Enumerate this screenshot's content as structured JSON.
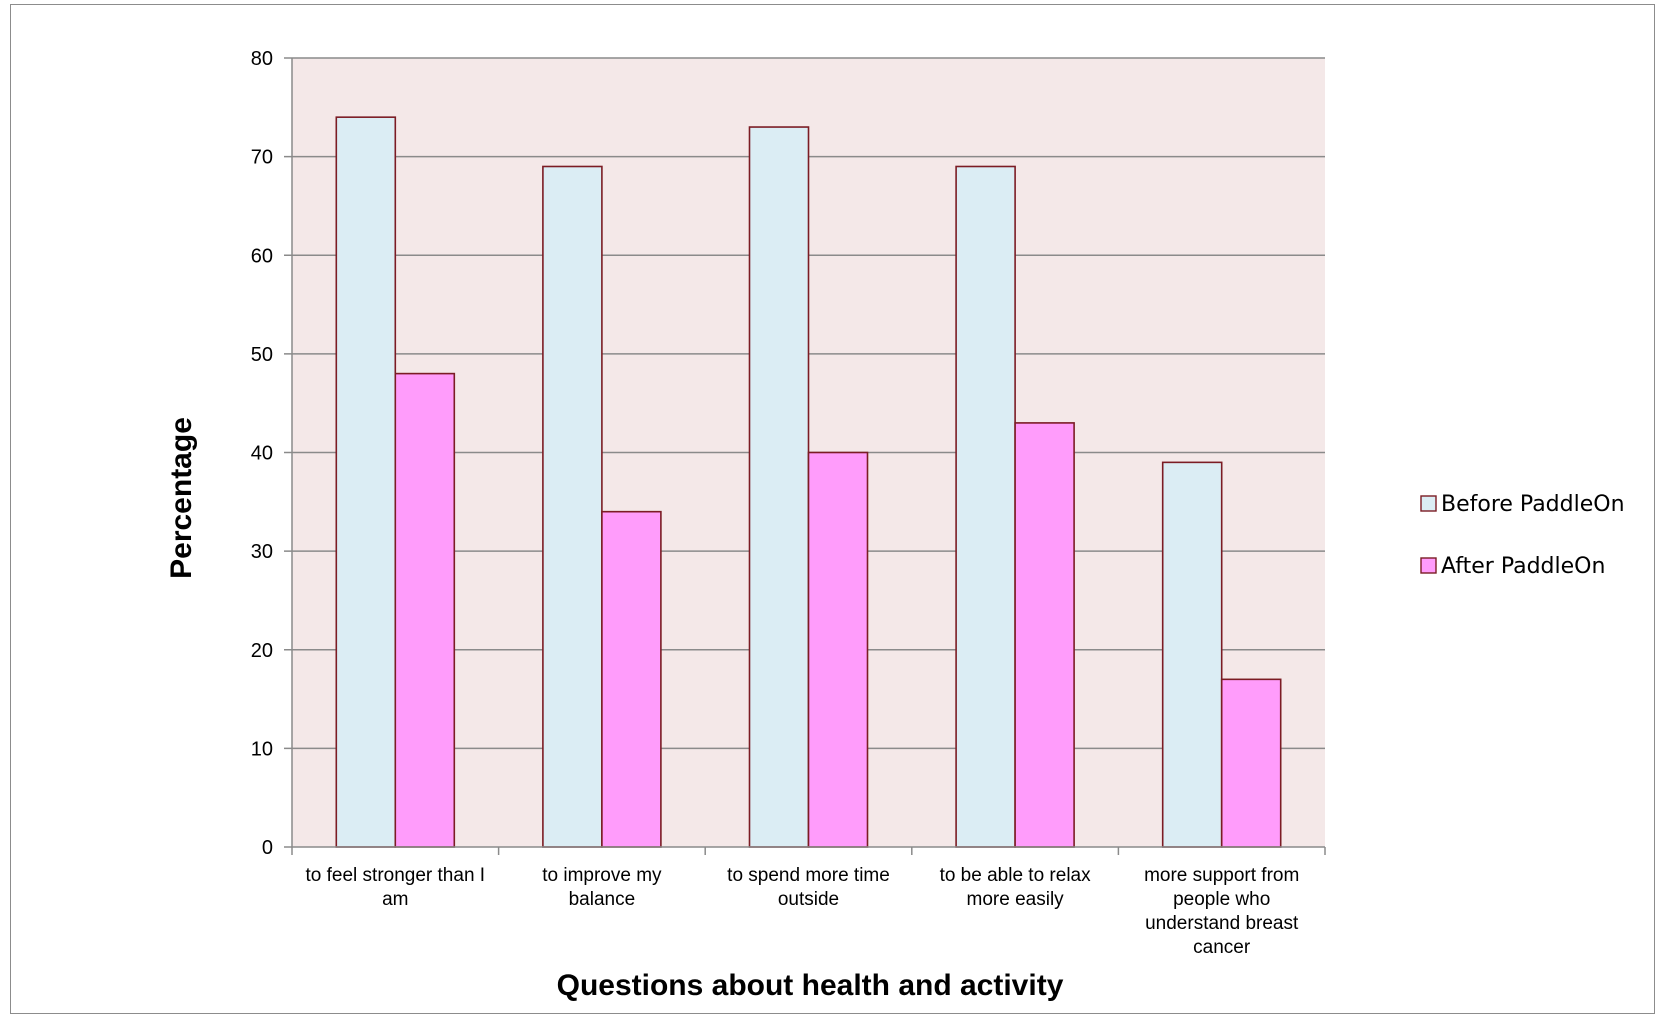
{
  "chart_data": {
    "type": "bar",
    "categories": [
      "to feel stronger than I am",
      "to improve my balance",
      "to spend more time outside",
      "to be able to relax more easily",
      "more support from people who understand breast cancer"
    ],
    "category_lines": [
      [
        "to feel stronger than I",
        "am"
      ],
      [
        "to improve my",
        "balance"
      ],
      [
        "to spend more time",
        "outside"
      ],
      [
        "to be able to relax",
        "more easily"
      ],
      [
        "more support from",
        "people who",
        "understand breast",
        "cancer"
      ]
    ],
    "series": [
      {
        "name": "Before PaddleOn",
        "values": [
          74,
          69,
          73,
          69,
          39
        ]
      },
      {
        "name": "After PaddleOn",
        "values": [
          48,
          34,
          40,
          43,
          17
        ]
      }
    ],
    "xlabel": "Questions about health and activity",
    "ylabel": "Percentage",
    "ylim": [
      0,
      80
    ],
    "yticks": [
      0,
      10,
      20,
      30,
      40,
      50,
      60,
      70,
      80
    ],
    "grid": true,
    "legend_position": "right",
    "colors": {
      "before_fill": "#dbedf4",
      "after_fill": "#ff9cfb",
      "bar_stroke": "#7b1c24",
      "plot_bg": "#f4e8e8",
      "grid": "#8a8a8a",
      "axis": "#8a8a8a"
    }
  }
}
